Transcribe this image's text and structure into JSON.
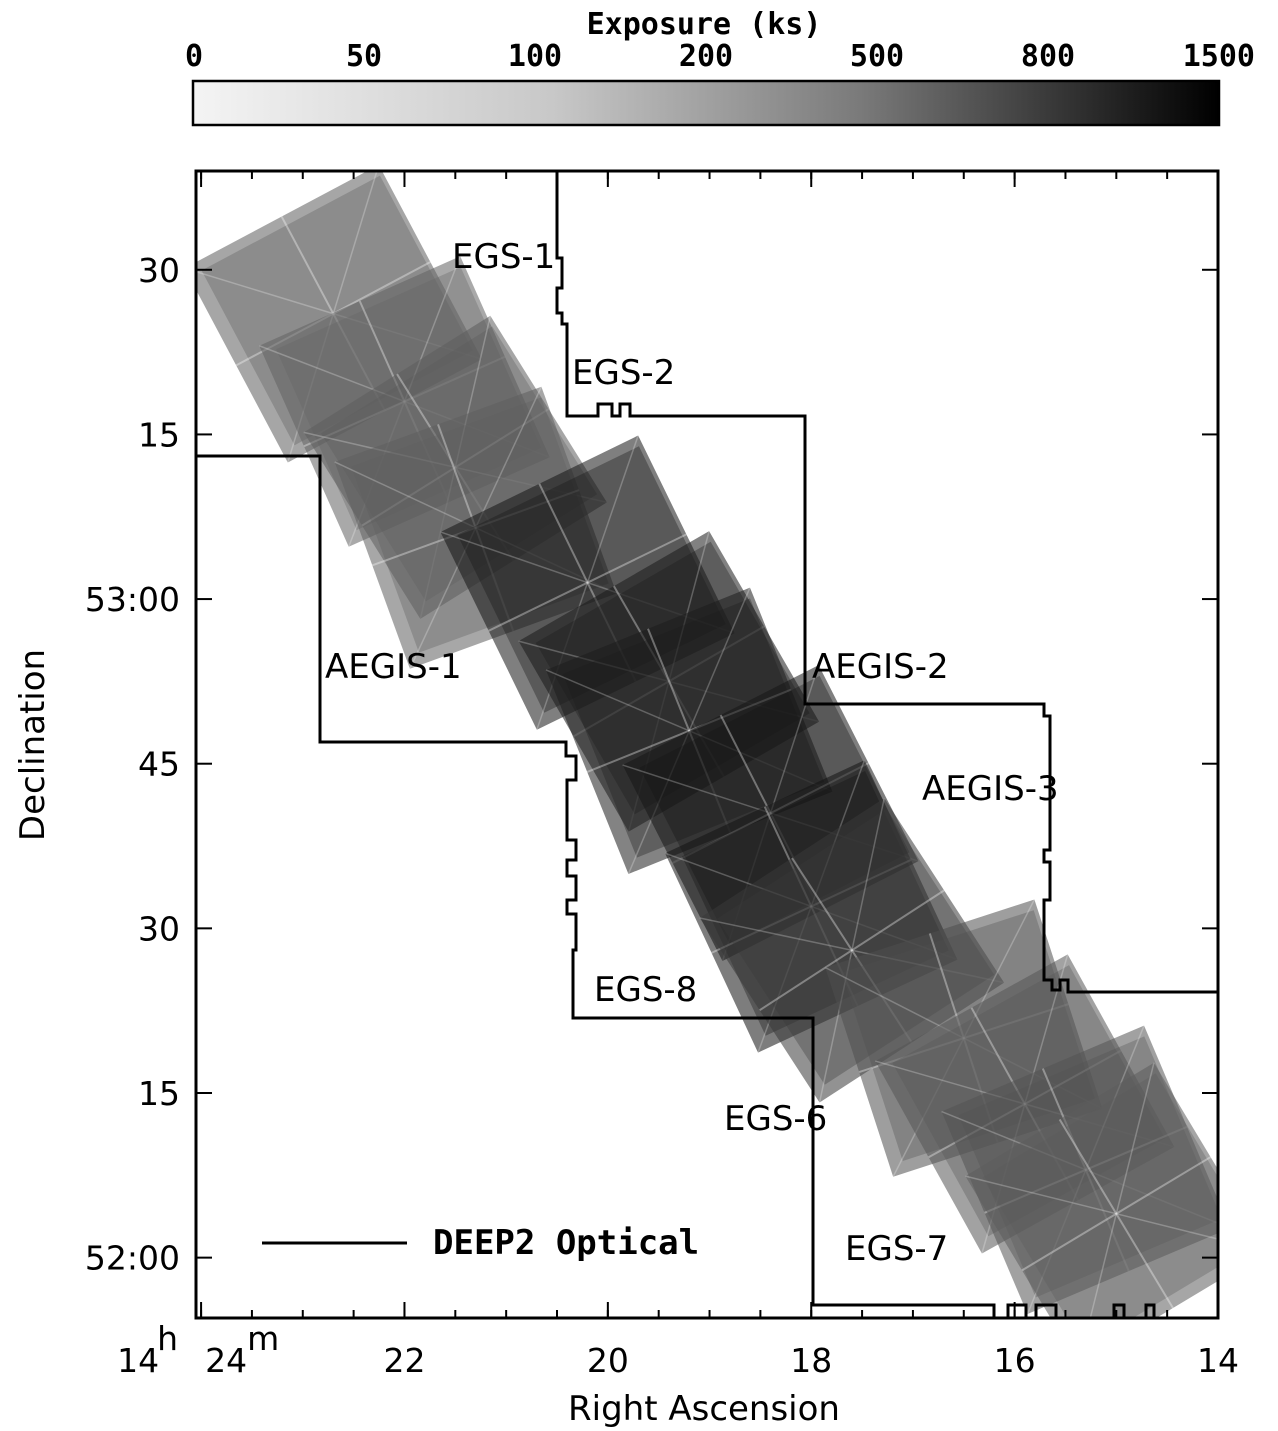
{
  "chart_data": {
    "type": "heatmap",
    "colorbar": {
      "title": "Exposure (ks)",
      "ticks": [
        "0",
        "50",
        "100",
        "200",
        "500",
        "800",
        "1500"
      ],
      "colors": [
        "#f4f4f4",
        "#000000"
      ]
    },
    "xlabel": "Right Ascension",
    "ylabel": "Declination",
    "x_ticks": [
      {
        "ra_min": 24,
        "label": "24",
        "hour_prefix": "14",
        "hour_unit": "h",
        "minute_unit": "m"
      },
      {
        "ra_min": 22,
        "label": "22"
      },
      {
        "ra_min": 20,
        "label": "20"
      },
      {
        "ra_min": 18,
        "label": "18"
      },
      {
        "ra_min": 16,
        "label": "16"
      },
      {
        "ra_min": 14,
        "label": "14"
      }
    ],
    "y_ticks": [
      {
        "dec_arcmin": 30,
        "label": "30"
      },
      {
        "dec_arcmin": 15,
        "label": "15"
      },
      {
        "dec_arcmin": 0,
        "label": "53:00"
      },
      {
        "dec_arcmin": -15,
        "label": "45"
      },
      {
        "dec_arcmin": -30,
        "label": "30"
      },
      {
        "dec_arcmin": -45,
        "label": "15"
      },
      {
        "dec_arcmin": -60,
        "label": "52:00"
      }
    ],
    "xlim": [
      24.05,
      14.0
    ],
    "ylim": [
      -65.5,
      39
    ],
    "field_labels": [
      "EGS-1",
      "EGS-2",
      "AEGIS-1",
      "AEGIS-2",
      "AEGIS-3",
      "EGS-8",
      "EGS-6",
      "EGS-7"
    ],
    "pointings": [
      {
        "ra": 22.7,
        "dec": 26.0,
        "exposure": 100
      },
      {
        "ra": 22.0,
        "dec": 18.0,
        "exposure": 80
      },
      {
        "ra": 21.5,
        "dec": 12.0,
        "exposure": 100
      },
      {
        "ra": 21.3,
        "dec": 6.5,
        "exposure": 90
      },
      {
        "ra": 20.2,
        "dec": 1.5,
        "exposure": 900
      },
      {
        "ra": 19.4,
        "dec": -7.5,
        "exposure": 800
      },
      {
        "ra": 19.2,
        "dec": -12.0,
        "exposure": 700
      },
      {
        "ra": 18.4,
        "dec": -19.5,
        "exposure": 900
      },
      {
        "ra": 18.0,
        "dec": -28.0,
        "exposure": 1000
      },
      {
        "ra": 17.6,
        "dec": -32.0,
        "exposure": 300
      },
      {
        "ra": 16.5,
        "dec": -40.0,
        "exposure": 150
      },
      {
        "ra": 15.9,
        "dec": -46.0,
        "exposure": 120
      },
      {
        "ra": 15.3,
        "dec": -52.0,
        "exposure": 130
      },
      {
        "ra": 15.0,
        "dec": -56.0,
        "exposure": 100
      }
    ],
    "legend": {
      "label": "DEEP2 Optical",
      "position": "bottom-left"
    }
  }
}
